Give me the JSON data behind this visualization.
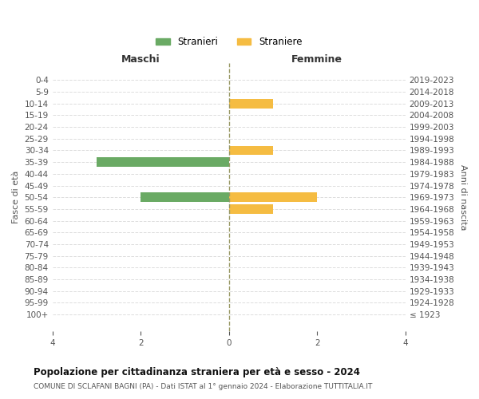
{
  "age_groups": [
    "100+",
    "95-99",
    "90-94",
    "85-89",
    "80-84",
    "75-79",
    "70-74",
    "65-69",
    "60-64",
    "55-59",
    "50-54",
    "45-49",
    "40-44",
    "35-39",
    "30-34",
    "25-29",
    "20-24",
    "15-19",
    "10-14",
    "5-9",
    "0-4"
  ],
  "birth_years": [
    "≤ 1923",
    "1924-1928",
    "1929-1933",
    "1934-1938",
    "1939-1943",
    "1944-1948",
    "1949-1953",
    "1954-1958",
    "1959-1963",
    "1964-1968",
    "1969-1973",
    "1974-1978",
    "1979-1983",
    "1984-1988",
    "1989-1993",
    "1994-1998",
    "1999-2003",
    "2004-2008",
    "2009-2013",
    "2014-2018",
    "2019-2023"
  ],
  "males": [
    0,
    0,
    0,
    0,
    0,
    0,
    0,
    0,
    0,
    0,
    2,
    0,
    0,
    3,
    0,
    0,
    0,
    0,
    0,
    0,
    0
  ],
  "females": [
    0,
    0,
    0,
    0,
    0,
    0,
    0,
    0,
    0,
    1,
    2,
    0,
    0,
    0,
    1,
    0,
    0,
    0,
    1,
    0,
    0
  ],
  "male_color": "#6aaa64",
  "female_color": "#f5bc42",
  "male_label": "Stranieri",
  "female_label": "Straniere",
  "xlim": 4,
  "title": "Popolazione per cittadinanza straniera per età e sesso - 2024",
  "subtitle": "COMUNE DI SCLAFANI BAGNI (PA) - Dati ISTAT al 1° gennaio 2024 - Elaborazione TUTTITALIA.IT",
  "xlabel_left": "Maschi",
  "xlabel_right": "Femmine",
  "ylabel_left": "Fasce di età",
  "ylabel_right": "Anni di nascita",
  "bg_color": "#ffffff",
  "grid_color": "#dddddd",
  "bar_height": 0.8
}
